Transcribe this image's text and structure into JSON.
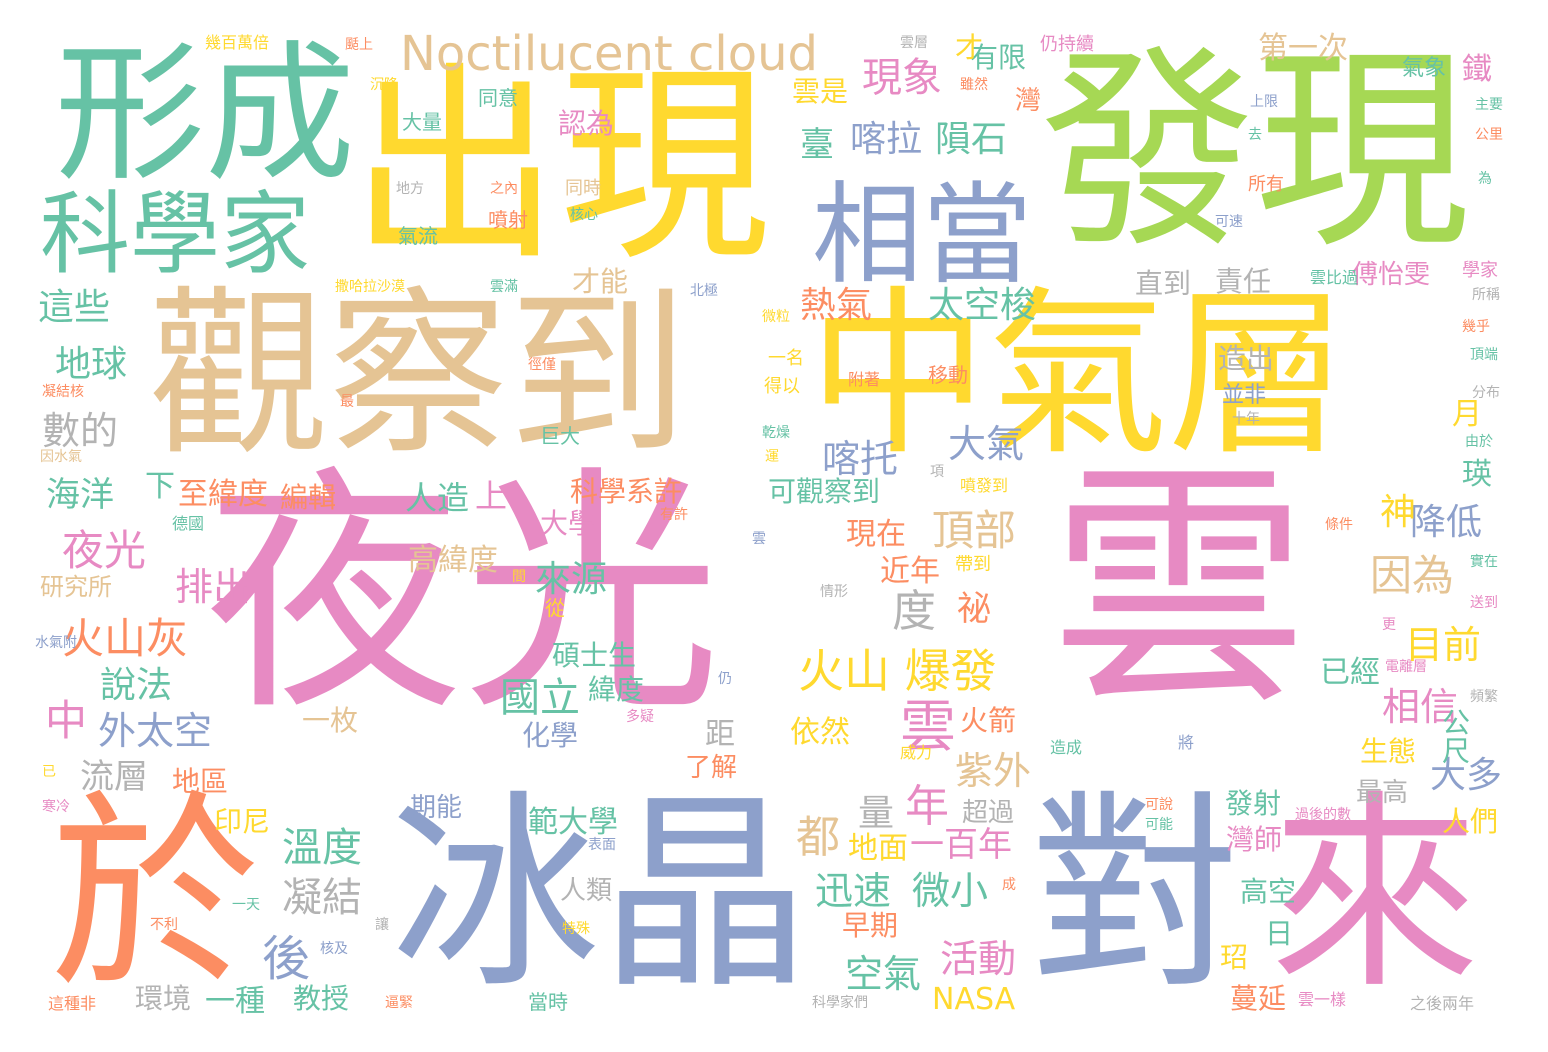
{
  "palette": {
    "pink": "#e78ac3",
    "yellow": "#ffd92f",
    "tan": "#e5c494",
    "green": "#66c2a5",
    "lime": "#a6d854",
    "orange": "#fc8d62",
    "blue": "#8da0cb",
    "gray": "#b3b3b3"
  },
  "words": [
    {
      "id": "yeguang-yun-a",
      "text": "夜光",
      "color": "pink"
    },
    {
      "id": "yeguang-yun-b",
      "text": "雲",
      "color": "pink"
    },
    {
      "id": "zhongqiceng",
      "text": "中氣層",
      "color": "yellow"
    },
    {
      "id": "guanchadao",
      "text": "觀察到",
      "color": "tan"
    },
    {
      "id": "chuxian",
      "text": "出現",
      "color": "yellow"
    },
    {
      "id": "faxian",
      "text": "發現",
      "color": "lime"
    },
    {
      "id": "xingcheng",
      "text": "形成",
      "color": "green"
    },
    {
      "id": "bingjing",
      "text": "冰晶",
      "color": "blue"
    },
    {
      "id": "dui",
      "text": "對",
      "color": "blue"
    },
    {
      "id": "lai",
      "text": "來",
      "color": "pink"
    },
    {
      "id": "yu",
      "text": "於",
      "color": "orange"
    },
    {
      "id": "xiangdang",
      "text": "相當",
      "color": "blue"
    },
    {
      "id": "kexuejia",
      "text": "科學家",
      "color": "green"
    },
    {
      "id": "noctilucent",
      "text": "Noctilucent cloud",
      "color": "tan"
    },
    {
      "id": "huoshan-baofa",
      "text": "火山 爆發",
      "color": "yellow"
    },
    {
      "id": "xianxiang",
      "text": "現象",
      "color": "pink"
    },
    {
      "id": "kela",
      "text": "喀拉",
      "color": "blue"
    },
    {
      "id": "yunshi",
      "text": "隕石",
      "color": "green"
    },
    {
      "id": "reqi",
      "text": "熱氣",
      "color": "orange"
    },
    {
      "id": "taikongsuo",
      "text": "太空梭",
      "color": "green"
    },
    {
      "id": "dingbu",
      "text": "頂部",
      "color": "tan"
    },
    {
      "id": "yinwei",
      "text": "因為",
      "color": "tan"
    },
    {
      "id": "jiangdi",
      "text": "降低",
      "color": "blue"
    },
    {
      "id": "mubian",
      "text": "目前",
      "color": "yellow"
    },
    {
      "id": "xiangxin",
      "text": "相信",
      "color": "pink"
    },
    {
      "id": "daduo",
      "text": "大多",
      "color": "blue"
    },
    {
      "id": "huoshanhui",
      "text": "火山灰",
      "color": "orange"
    },
    {
      "id": "yeguang-small",
      "text": "夜光",
      "color": "pink"
    },
    {
      "id": "paichu",
      "text": "排出",
      "color": "pink"
    },
    {
      "id": "laiyuan",
      "text": "來源",
      "color": "green"
    },
    {
      "id": "guoli",
      "text": "國立",
      "color": "green"
    },
    {
      "id": "shuofa",
      "text": "說法",
      "color": "green"
    },
    {
      "id": "waitaikong",
      "text": "外太空",
      "color": "blue"
    },
    {
      "id": "zhong-small",
      "text": "中",
      "color": "pink"
    },
    {
      "id": "liuceng",
      "text": "流層",
      "color": "gray"
    },
    {
      "id": "wendu",
      "text": "溫度",
      "color": "green"
    },
    {
      "id": "ningjie",
      "text": "凝結",
      "color": "gray"
    },
    {
      "id": "hou",
      "text": "後",
      "color": "blue"
    },
    {
      "id": "xunsu",
      "text": "迅速",
      "color": "green"
    },
    {
      "id": "weixiao",
      "text": "微小",
      "color": "green"
    },
    {
      "id": "kongqi",
      "text": "空氣",
      "color": "green"
    },
    {
      "id": "huodong",
      "text": "活動",
      "color": "pink"
    },
    {
      "id": "nian",
      "text": "年",
      "color": "pink"
    },
    {
      "id": "ziwai",
      "text": "紫外",
      "color": "tan"
    },
    {
      "id": "yun-small",
      "text": "雲",
      "color": "pink"
    },
    {
      "id": "daqi",
      "text": "大氣",
      "color": "blue"
    },
    {
      "id": "katuo",
      "text": "喀托",
      "color": "blue"
    },
    {
      "id": "zhexie",
      "text": "這些",
      "color": "green"
    },
    {
      "id": "diqiu",
      "text": "地球",
      "color": "green"
    },
    {
      "id": "shude",
      "text": "數的",
      "color": "gray"
    },
    {
      "id": "haiyang",
      "text": "海洋",
      "color": "green"
    },
    {
      "id": "xia",
      "text": "下",
      "color": "green"
    },
    {
      "id": "zhiweidu",
      "text": "至緯度",
      "color": "orange"
    },
    {
      "id": "bianji",
      "text": "編輯",
      "color": "orange"
    },
    {
      "id": "du",
      "text": "度",
      "color": "gray"
    },
    {
      "id": "dou",
      "text": "都",
      "color": "tan"
    },
    {
      "id": "liang",
      "text": "量",
      "color": "gray"
    },
    {
      "id": "dimian",
      "text": "地面",
      "color": "yellow"
    },
    {
      "id": "yibainian",
      "text": "一百年",
      "color": "pink"
    },
    {
      "id": "kexuexixu",
      "text": "科學系許",
      "color": "orange"
    },
    {
      "id": "daxue",
      "text": "大學",
      "color": "pink"
    },
    {
      "id": "renzao",
      "text": "人造",
      "color": "green"
    },
    {
      "id": "shang",
      "text": "上",
      "color": "pink"
    },
    {
      "id": "keguanchadao",
      "text": "可觀察到",
      "color": "green"
    },
    {
      "id": "xianzai",
      "text": "現在",
      "color": "orange"
    },
    {
      "id": "jinnian",
      "text": "近年",
      "color": "orange"
    },
    {
      "id": "mi",
      "text": "祕",
      "color": "orange"
    },
    {
      "id": "shen",
      "text": "神",
      "color": "yellow"
    },
    {
      "id": "tie",
      "text": "鐵",
      "color": "pink"
    },
    {
      "id": "yue",
      "text": "月",
      "color": "yellow"
    },
    {
      "id": "ying",
      "text": "瑛",
      "color": "green"
    },
    {
      "id": "gaoweidu",
      "text": "高緯度",
      "color": "tan"
    },
    {
      "id": "shuoshisheng",
      "text": "碩士生",
      "color": "green"
    },
    {
      "id": "weidu",
      "text": "緯度",
      "color": "green"
    },
    {
      "id": "huaxue",
      "text": "化學",
      "color": "blue"
    },
    {
      "id": "yimei",
      "text": "一枚",
      "color": "tan"
    },
    {
      "id": "ju",
      "text": "距",
      "color": "gray"
    },
    {
      "id": "liaojie",
      "text": "了解",
      "color": "orange"
    },
    {
      "id": "yiran",
      "text": "依然",
      "color": "yellow"
    },
    {
      "id": "huojian",
      "text": "火箭",
      "color": "orange"
    },
    {
      "id": "yijing",
      "text": "已經",
      "color": "green"
    },
    {
      "id": "shengtai",
      "text": "生態",
      "color": "yellow"
    },
    {
      "id": "zuigao",
      "text": "最高",
      "color": "gray"
    },
    {
      "id": "chaoguo",
      "text": "超過",
      "color": "gray"
    },
    {
      "id": "yinni",
      "text": "印尼",
      "color": "yellow"
    },
    {
      "id": "diqu",
      "text": "地區",
      "color": "orange"
    },
    {
      "id": "qineng",
      "text": "期能",
      "color": "blue"
    },
    {
      "id": "fanrdaxue",
      "text": "範大學",
      "color": "green"
    },
    {
      "id": "renlei",
      "text": "人類",
      "color": "gray"
    },
    {
      "id": "huanjing",
      "text": "環境",
      "color": "gray"
    },
    {
      "id": "yizhong",
      "text": "一種",
      "color": "green"
    },
    {
      "id": "jiaoshou",
      "text": "教授",
      "color": "green"
    },
    {
      "id": "zaoqi",
      "text": "早期",
      "color": "orange"
    },
    {
      "id": "nasa",
      "text": "NASA",
      "color": "yellow"
    },
    {
      "id": "fashe",
      "text": "發射",
      "color": "green"
    },
    {
      "id": "wanshi",
      "text": "灣師",
      "color": "pink"
    },
    {
      "id": "gaokong",
      "text": "高空",
      "color": "green"
    },
    {
      "id": "ri",
      "text": "日",
      "color": "green"
    },
    {
      "id": "zhao",
      "text": "玿",
      "color": "yellow"
    },
    {
      "id": "manyan",
      "text": "蔓延",
      "color": "orange"
    },
    {
      "id": "renmen",
      "text": "人們",
      "color": "yellow"
    },
    {
      "id": "gongchi",
      "text": "公尺",
      "color": "green"
    },
    {
      "id": "diyici",
      "text": "第一次",
      "color": "tan"
    },
    {
      "id": "youxian",
      "text": "有限",
      "color": "green"
    },
    {
      "id": "yunshi-v",
      "text": "雲是",
      "color": "yellow"
    },
    {
      "id": "cai",
      "text": "才",
      "color": "yellow"
    },
    {
      "id": "wan",
      "text": "灣",
      "color": "orange"
    },
    {
      "id": "tai",
      "text": "臺",
      "color": "green"
    },
    {
      "id": "renwei",
      "text": "認為",
      "color": "pink"
    },
    {
      "id": "zhidao",
      "text": "直到",
      "color": "gray"
    },
    {
      "id": "zeren",
      "text": "責任",
      "color": "gray"
    },
    {
      "id": "fuyiwen",
      "text": "傅怡雯",
      "color": "pink"
    },
    {
      "id": "caineng",
      "text": "才能",
      "color": "tan"
    },
    {
      "id": "zaochu",
      "text": "造出",
      "color": "gray"
    },
    {
      "id": "bingfei",
      "text": "並非",
      "color": "blue"
    },
    {
      "id": "yanjiusuo",
      "text": "研究所",
      "color": "tan"
    },
    {
      "id": "qixiang",
      "text": "氣象",
      "color": "green"
    },
    {
      "id": "jibaiwanxin",
      "text": "幾百萬倍",
      "color": "yellow"
    },
    {
      "id": "qiupian",
      "text": "颳上",
      "color": "orange"
    },
    {
      "id": "yunceng",
      "text": "雲層",
      "color": "gray"
    },
    {
      "id": "rengchixu",
      "text": "仍持續",
      "color": "pink"
    },
    {
      "id": "chenjiang",
      "text": "沉降",
      "color": "yellow"
    },
    {
      "id": "suiran",
      "text": "雖然",
      "color": "orange"
    },
    {
      "id": "tongyi",
      "text": "同意",
      "color": "green"
    },
    {
      "id": "daliang",
      "text": "大量",
      "color": "green"
    },
    {
      "id": "shangxian",
      "text": "上限",
      "color": "blue"
    },
    {
      "id": "qu",
      "text": "去",
      "color": "green"
    },
    {
      "id": "zhuyao",
      "text": "主要",
      "color": "green"
    },
    {
      "id": "gongli",
      "text": "公里",
      "color": "orange"
    },
    {
      "id": "wei",
      "text": "為",
      "color": "green"
    },
    {
      "id": "difang",
      "text": "地方",
      "color": "gray"
    },
    {
      "id": "zhinei",
      "text": "之內",
      "color": "orange"
    },
    {
      "id": "tongshi",
      "text": "同時",
      "color": "tan"
    },
    {
      "id": "hexin",
      "text": "核心",
      "color": "green"
    },
    {
      "id": "qiliu",
      "text": "氣流",
      "color": "green"
    },
    {
      "id": "penshe",
      "text": "噴射",
      "color": "orange"
    },
    {
      "id": "suoyou",
      "text": "所有",
      "color": "orange"
    },
    {
      "id": "kesu",
      "text": "可速",
      "color": "blue"
    },
    {
      "id": "xuejia",
      "text": "學家",
      "color": "pink"
    },
    {
      "id": "suocheng",
      "text": "所稱",
      "color": "gray"
    },
    {
      "id": "sahala",
      "text": "撒哈拉沙漠",
      "color": "yellow"
    },
    {
      "id": "yunman",
      "text": "雲滿",
      "color": "green"
    },
    {
      "id": "beiji",
      "text": "北極",
      "color": "blue"
    },
    {
      "id": "yunbiguo",
      "text": "雲比過",
      "color": "green"
    },
    {
      "id": "weili",
      "text": "微粒",
      "color": "yellow"
    },
    {
      "id": "jihu",
      "text": "幾乎",
      "color": "orange"
    },
    {
      "id": "dingduan",
      "text": "頂端",
      "color": "green"
    },
    {
      "id": "ningjiehe",
      "text": "凝結核",
      "color": "orange"
    },
    {
      "id": "zui",
      "text": "最",
      "color": "orange"
    },
    {
      "id": "jingjin",
      "text": "徑僅",
      "color": "orange"
    },
    {
      "id": "yiming",
      "text": "一名",
      "color": "yellow"
    },
    {
      "id": "deyi",
      "text": "得以",
      "color": "yellow"
    },
    {
      "id": "fuzhe",
      "text": "附著",
      "color": "orange"
    },
    {
      "id": "yidong",
      "text": "移動",
      "color": "orange"
    },
    {
      "id": "fenbu",
      "text": "分布",
      "color": "gray"
    },
    {
      "id": "shinian",
      "text": "十年",
      "color": "gray"
    },
    {
      "id": "juda",
      "text": "巨大",
      "color": "green"
    },
    {
      "id": "gan",
      "text": "乾燥",
      "color": "green"
    },
    {
      "id": "yun-tiny",
      "text": "運",
      "color": "yellow"
    },
    {
      "id": "xiang",
      "text": "項",
      "color": "gray"
    },
    {
      "id": "youyu",
      "text": "由於",
      "color": "green"
    },
    {
      "id": "yinshuiqi",
      "text": "因水氣",
      "color": "tan"
    },
    {
      "id": "dedao",
      "text": "帶到",
      "color": "yellow"
    },
    {
      "id": "pen",
      "text": "噴發到",
      "color": "yellow"
    },
    {
      "id": "deguo",
      "text": "德國",
      "color": "green"
    },
    {
      "id": "youxu",
      "text": "有許",
      "color": "orange"
    },
    {
      "id": "tiaojian",
      "text": "條件",
      "color": "orange"
    },
    {
      "id": "shizai",
      "text": "實在",
      "color": "green"
    },
    {
      "id": "yun-mini",
      "text": "雲",
      "color": "blue"
    },
    {
      "id": "jian",
      "text": "間",
      "color": "yellow"
    },
    {
      "id": "qingxing",
      "text": "情形",
      "color": "gray"
    },
    {
      "id": "songdao",
      "text": "送到",
      "color": "pink"
    },
    {
      "id": "geng",
      "text": "更",
      "color": "pink"
    },
    {
      "id": "cong",
      "text": "從",
      "color": "yellow"
    },
    {
      "id": "shuiqifu",
      "text": "水氣附",
      "color": "blue"
    },
    {
      "id": "reng",
      "text": "仍",
      "color": "blue"
    },
    {
      "id": "duo",
      "text": "多疑",
      "color": "pink"
    },
    {
      "id": "dianliceng",
      "text": "電離層",
      "color": "pink"
    },
    {
      "id": "pinfan",
      "text": "頻繁",
      "color": "gray"
    },
    {
      "id": "weili-b",
      "text": "威力",
      "color": "yellow"
    },
    {
      "id": "zaocheng",
      "text": "造成",
      "color": "green"
    },
    {
      "id": "jiang",
      "text": "將",
      "color": "blue"
    },
    {
      "id": "yi",
      "text": "已",
      "color": "yellow"
    },
    {
      "id": "hanleng",
      "text": "寒冷",
      "color": "pink"
    },
    {
      "id": "kejiang",
      "text": "可說",
      "color": "orange"
    },
    {
      "id": "keneng",
      "text": "可能",
      "color": "green"
    },
    {
      "id": "guohou",
      "text": "過後的數",
      "color": "pink"
    },
    {
      "id": "biaomian",
      "text": "表面",
      "color": "blue"
    },
    {
      "id": "yitian",
      "text": "一天",
      "color": "green"
    },
    {
      "id": "cheng",
      "text": "成",
      "color": "orange"
    },
    {
      "id": "buli",
      "text": "不利",
      "color": "orange"
    },
    {
      "id": "rang",
      "text": "讓",
      "color": "gray"
    },
    {
      "id": "teshu",
      "text": "特殊",
      "color": "yellow"
    },
    {
      "id": "heji",
      "text": "核及",
      "color": "blue"
    },
    {
      "id": "zhezhongfei",
      "text": "這種非",
      "color": "orange"
    },
    {
      "id": "biaozhi",
      "text": "逼緊",
      "color": "orange"
    },
    {
      "id": "dangshi",
      "text": "當時",
      "color": "green"
    },
    {
      "id": "kexuejiamen",
      "text": "科學家們",
      "color": "gray"
    },
    {
      "id": "yunyiyang",
      "text": "雲一樣",
      "color": "pink"
    },
    {
      "id": "zhihou",
      "text": "之後兩年",
      "color": "gray"
    }
  ]
}
